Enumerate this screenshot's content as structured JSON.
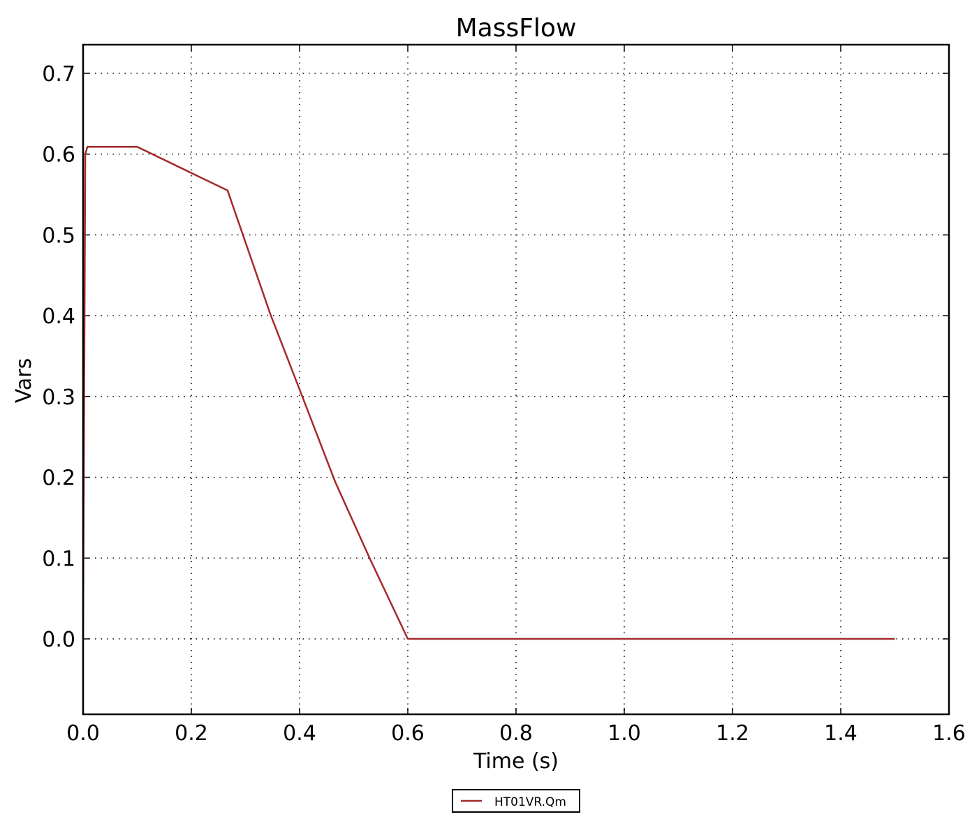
{
  "chart_data": {
    "type": "line",
    "title": "MassFlow",
    "xlabel": "Time (s)",
    "ylabel": "Vars",
    "xlim": [
      0.0,
      1.6
    ],
    "ylim": [
      -0.093,
      0.735
    ],
    "xticks": [
      "0.0",
      "0.2",
      "0.4",
      "0.6",
      "0.8",
      "1.0",
      "1.2",
      "1.4",
      "1.6"
    ],
    "yticks": [
      "0.0",
      "0.1",
      "0.2",
      "0.3",
      "0.4",
      "0.5",
      "0.6",
      "0.7"
    ],
    "grid": true,
    "legend_position": "bottom-center-outside",
    "series": [
      {
        "name": "HT01VR.Qm",
        "color": "#a52a2a",
        "x": [
          0.0,
          0.004,
          0.008,
          0.1,
          0.267,
          0.346,
          0.401,
          0.466,
          0.53,
          0.6,
          1.5
        ],
        "y": [
          0.0,
          0.6,
          0.609,
          0.609,
          0.555,
          0.402,
          0.307,
          0.194,
          0.099,
          0.0,
          0.0
        ]
      }
    ]
  }
}
